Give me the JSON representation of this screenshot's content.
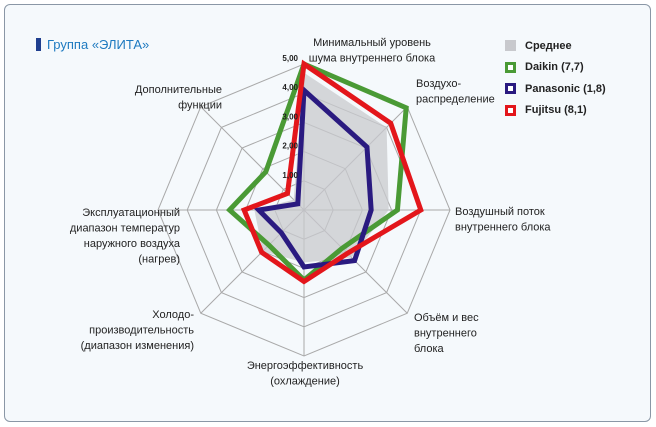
{
  "title": "Группа «ЭЛИТА»",
  "chart_data": {
    "type": "radar",
    "axes": [
      [
        "Минимальный уровень",
        "шума внутреннего блока"
      ],
      [
        "Воздухо-",
        "распределение"
      ],
      [
        "Воздушный поток",
        "внутреннего блока"
      ],
      [
        "Объём и вес",
        "внутреннего",
        "блока"
      ],
      [
        "Энергоэффективность",
        "(охлаждение)"
      ],
      [
        "Холодо-",
        "производительность",
        "(диапазон изменения)"
      ],
      [
        "Эксплуатационный",
        "диапазон температур",
        "наружного воздуха",
        "(нагрев)"
      ],
      [
        "Дополнительные",
        "функции"
      ]
    ],
    "rlim": [
      0,
      5
    ],
    "ticks": [
      "1,00",
      "2,00",
      "3,00",
      "4,00",
      "5,00"
    ],
    "grid": true,
    "legend_position": "top-right",
    "series": [
      {
        "name": "Среднее",
        "color": "#c8c9cd",
        "style": "fill",
        "values": [
          4.7,
          4.0,
          2.9,
          2.3,
          1.8,
          2.0,
          1.7,
          0.5
        ]
      },
      {
        "name": "Daikin (7,7)",
        "color": "#4a9a35",
        "style": "line",
        "values": [
          5.0,
          4.95,
          3.2,
          1.85,
          2.4,
          1.7,
          2.55,
          1.85
        ]
      },
      {
        "name": "Panasonic (1,8)",
        "color": "#2a1a80",
        "style": "line",
        "values": [
          4.1,
          3.05,
          2.3,
          2.45,
          1.95,
          1.1,
          1.55,
          0.3
        ]
      },
      {
        "name": "Fujitsu (8,1)",
        "color": "#e3161b",
        "style": "line",
        "values": [
          5.0,
          4.2,
          4.0,
          2.1,
          2.45,
          2.05,
          2.05,
          0.8
        ]
      }
    ]
  }
}
